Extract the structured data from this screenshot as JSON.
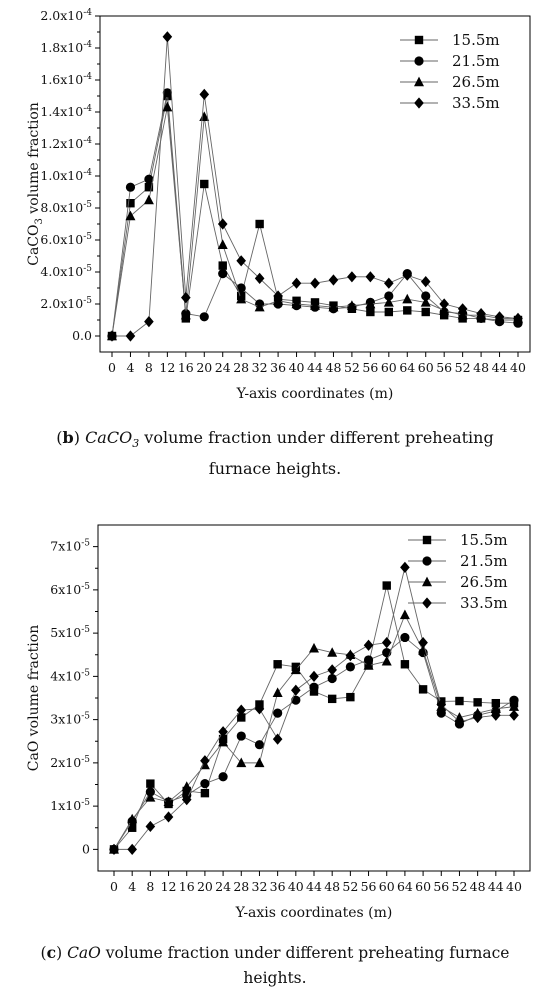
{
  "chart_data": [
    {
      "type": "line",
      "id": "b",
      "ylabel_prefix": "CaCO",
      "ylabel_sub": "3",
      "ylabel_suffix": " volume fraction",
      "xlabel": "Y-axis coordinates (m)",
      "categories": [
        "0",
        "4",
        "8",
        "12",
        "16",
        "20",
        "24",
        "28",
        "32",
        "36",
        "40",
        "44",
        "48",
        "52",
        "56",
        "60",
        "64",
        "60",
        "56",
        "52",
        "48",
        "44",
        "40"
      ],
      "ylim": [
        -1e-05,
        0.0002
      ],
      "yticks": [
        {
          "v": 0,
          "label": "0.0"
        },
        {
          "v": 2e-05,
          "label": "2.0x10-5"
        },
        {
          "v": 4e-05,
          "label": "4.0x10-5"
        },
        {
          "v": 6e-05,
          "label": "6.0x10-5"
        },
        {
          "v": 8e-05,
          "label": "8.0x10-5"
        },
        {
          "v": 0.0001,
          "label": "1.0x10-4"
        },
        {
          "v": 0.00012,
          "label": "1.2x10-4"
        },
        {
          "v": 0.00014,
          "label": "1.4x10-4"
        },
        {
          "v": 0.00016,
          "label": "1.6x10-4"
        },
        {
          "v": 0.00018,
          "label": "1.8x10-4"
        },
        {
          "v": 0.0002,
          "label": "2.0x10-4"
        }
      ],
      "legend_position": "top-right",
      "series": [
        {
          "name": "15.5m",
          "marker": "square",
          "values": [
            0,
            8.3e-05,
            9.3e-05,
            0.00015,
            1.1e-05,
            9.5e-05,
            4.4e-05,
            2.5e-05,
            7e-05,
            2.3e-05,
            2.2e-05,
            2.1e-05,
            1.9e-05,
            1.7e-05,
            1.5e-05,
            1.5e-05,
            1.6e-05,
            1.5e-05,
            1.3e-05,
            1.1e-05,
            1.1e-05,
            1e-05,
            1e-05
          ]
        },
        {
          "name": "21.5m",
          "marker": "circle",
          "values": [
            0,
            9.3e-05,
            9.8e-05,
            0.000152,
            1.4e-05,
            1.2e-05,
            3.9e-05,
            3e-05,
            2e-05,
            2e-05,
            1.9e-05,
            1.8e-05,
            1.7e-05,
            1.8e-05,
            2.1e-05,
            2.5e-05,
            3.9e-05,
            2.5e-05,
            1.5e-05,
            1.4e-05,
            1.1e-05,
            9e-06,
            8e-06
          ]
        },
        {
          "name": "26.5m",
          "marker": "triangle",
          "values": [
            0,
            7.5e-05,
            8.5e-05,
            0.000143,
            1.3e-05,
            0.000137,
            5.7e-05,
            2.3e-05,
            1.8e-05,
            2.2e-05,
            2e-05,
            1.9e-05,
            1.8e-05,
            1.9e-05,
            2e-05,
            2.1e-05,
            2.3e-05,
            2.1e-05,
            1.6e-05,
            1.3e-05,
            1.3e-05,
            1.1e-05,
            1.1e-05
          ]
        },
        {
          "name": "33.5m",
          "marker": "diamond",
          "values": [
            0,
            0,
            9e-06,
            0.000187,
            2.4e-05,
            0.000151,
            7e-05,
            4.7e-05,
            3.6e-05,
            2.5e-05,
            3.3e-05,
            3.3e-05,
            3.5e-05,
            3.7e-05,
            3.7e-05,
            3.3e-05,
            3.8e-05,
            3.4e-05,
            2e-05,
            1.7e-05,
            1.4e-05,
            1.2e-05,
            1.1e-05
          ]
        }
      ]
    },
    {
      "type": "line",
      "id": "c",
      "ylabel_prefix": "CaO volume fraction",
      "ylabel_sub": "",
      "ylabel_suffix": "",
      "xlabel": "Y-axis coordinates (m)",
      "categories": [
        "0",
        "4",
        "8",
        "12",
        "16",
        "20",
        "24",
        "28",
        "32",
        "36",
        "40",
        "44",
        "48",
        "52",
        "56",
        "60",
        "64",
        "60",
        "56",
        "52",
        "48",
        "44",
        "40"
      ],
      "ylim": [
        -5e-06,
        7.5e-05
      ],
      "yticks": [
        {
          "v": 0,
          "label": "0"
        },
        {
          "v": 1e-05,
          "label": "1x10-5"
        },
        {
          "v": 2e-05,
          "label": "2x10-5"
        },
        {
          "v": 3e-05,
          "label": "3x10-5"
        },
        {
          "v": 4e-05,
          "label": "4x10-5"
        },
        {
          "v": 5e-05,
          "label": "5x10-5"
        },
        {
          "v": 6e-05,
          "label": "6x10-5"
        },
        {
          "v": 7e-05,
          "label": "7x10-5"
        }
      ],
      "legend_position": "top-right",
      "series": [
        {
          "name": "15.5m",
          "marker": "square",
          "values": [
            0,
            5e-06,
            1.52e-05,
            1.05e-05,
            1.35e-05,
            1.3e-05,
            2.55e-05,
            3.05e-05,
            3.35e-05,
            4.28e-05,
            4.22e-05,
            3.65e-05,
            3.48e-05,
            3.52e-05,
            4.28e-05,
            6.1e-05,
            4.28e-05,
            3.7e-05,
            3.42e-05,
            3.43e-05,
            3.4e-05,
            3.38e-05,
            3.38e-05
          ]
        },
        {
          "name": "21.5m",
          "marker": "circle",
          "values": [
            0,
            6.5e-06,
            1.33e-05,
            1.1e-05,
            1.25e-05,
            1.52e-05,
            1.68e-05,
            2.62e-05,
            2.42e-05,
            3.15e-05,
            3.45e-05,
            3.75e-05,
            3.95e-05,
            4.22e-05,
            4.38e-05,
            4.55e-05,
            4.9e-05,
            4.55e-05,
            3.15e-05,
            2.9e-05,
            3.1e-05,
            3.2e-05,
            3.45e-05
          ]
        },
        {
          "name": "26.5m",
          "marker": "triangle",
          "values": [
            0,
            7e-06,
            1.2e-05,
            1.1e-05,
            1.45e-05,
            1.95e-05,
            2.48e-05,
            2e-05,
            2e-05,
            3.62e-05,
            4.15e-05,
            4.65e-05,
            4.55e-05,
            4.5e-05,
            4.25e-05,
            4.35e-05,
            5.42e-05,
            4.6e-05,
            3.3e-05,
            3.05e-05,
            3.15e-05,
            3.25e-05,
            3.3e-05
          ]
        },
        {
          "name": "33.5m",
          "marker": "diamond",
          "values": [
            0,
            0,
            5.3e-06,
            7.5e-06,
            1.15e-05,
            2.05e-05,
            2.72e-05,
            3.22e-05,
            3.25e-05,
            2.55e-05,
            3.68e-05,
            4e-05,
            4.15e-05,
            4.48e-05,
            4.72e-05,
            4.78e-05,
            6.52e-05,
            4.78e-05,
            3.35e-05,
            2.95e-05,
            3.05e-05,
            3.1e-05,
            3.1e-05
          ]
        }
      ]
    }
  ],
  "captions": {
    "b": {
      "label": "b",
      "line1_prefix": " ",
      "line1_species": "CaCO",
      "line1_sub": "3",
      "line1_rest": " volume fraction under different preheating",
      "line2": "furnace heights."
    },
    "c": {
      "label": "c",
      "line1_prefix": " ",
      "line1_species": "CaO",
      "line1_rest": " volume fraction under different preheating furnace",
      "line2": "heights."
    }
  }
}
